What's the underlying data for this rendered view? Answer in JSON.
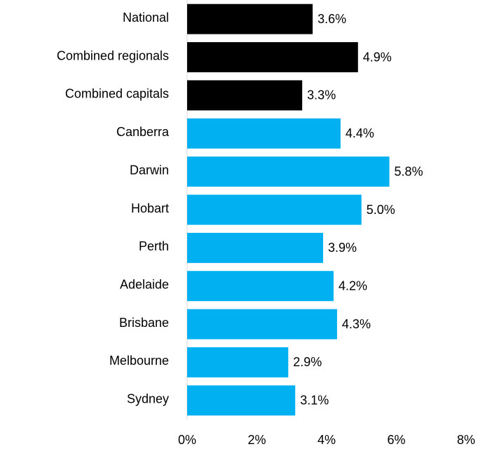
{
  "chart_data": {
    "type": "bar",
    "orientation": "horizontal",
    "categories": [
      "National",
      "Combined regionals",
      "Combined capitals",
      "Canberra",
      "Darwin",
      "Hobart",
      "Perth",
      "Adelaide",
      "Brisbane",
      "Melbourne",
      "Sydney"
    ],
    "values": [
      3.6,
      4.9,
      3.3,
      4.4,
      5.8,
      5.0,
      3.9,
      4.2,
      4.3,
      2.9,
      3.1
    ],
    "value_labels": [
      "3.6%",
      "4.9%",
      "3.3%",
      "4.4%",
      "5.8%",
      "5.0%",
      "3.9%",
      "4.2%",
      "4.3%",
      "2.9%",
      "3.1%"
    ],
    "colors": [
      "#000000",
      "#000000",
      "#000000",
      "#00b0f0",
      "#00b0f0",
      "#00b0f0",
      "#00b0f0",
      "#00b0f0",
      "#00b0f0",
      "#00b0f0",
      "#00b0f0"
    ],
    "xlim": [
      0,
      8
    ],
    "xticks": [
      {
        "value": 0,
        "label": "0%"
      },
      {
        "value": 2,
        "label": "2%"
      },
      {
        "value": 4,
        "label": "4%"
      },
      {
        "value": 6,
        "label": "6%"
      },
      {
        "value": 8,
        "label": "8%"
      }
    ],
    "grid": false
  }
}
